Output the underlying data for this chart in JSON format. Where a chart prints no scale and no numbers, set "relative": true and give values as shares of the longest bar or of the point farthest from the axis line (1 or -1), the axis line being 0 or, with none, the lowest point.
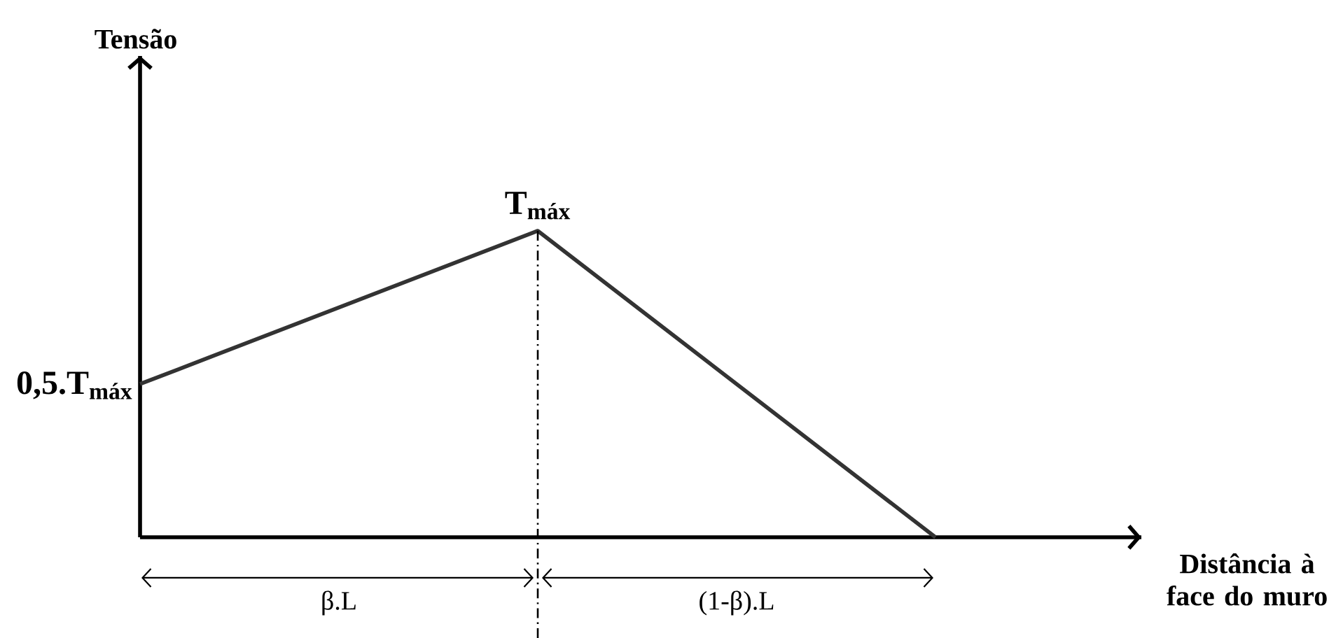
{
  "chart_data": {
    "type": "line",
    "relative": true,
    "xlabel": "Distância à face do muro",
    "categories": [
      null,
      null,
      null
    ],
    "values": [
      0.5,
      1,
      0
    ],
    "color": "#333333",
    "annotations": [
      "Tensão",
      {
        "text": "T$_{máx}$",
        "y": 1
      },
      "0,5.T$_{máx}$",
      "β.L",
      "(1-β).L"
    ]
  }
}
